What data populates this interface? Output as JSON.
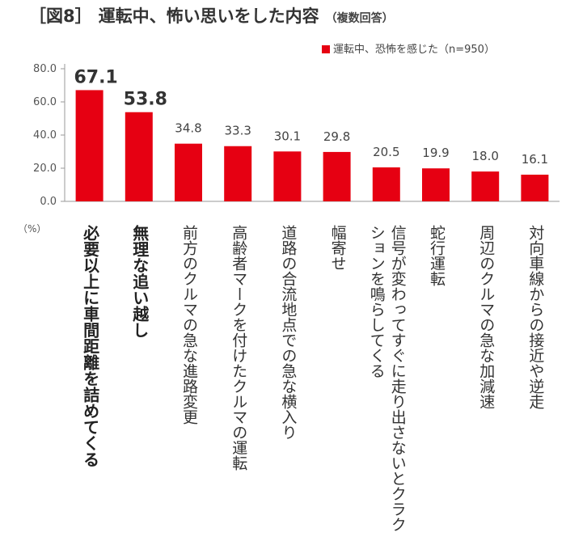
{
  "header": {
    "figure_label": "［図8］",
    "title": "運転中、怖い思いをした内容",
    "note": "（複数回答）"
  },
  "chart_data": {
    "type": "bar",
    "categories": [
      "必要以上に車間距離を詰めてくる",
      "無理な追い越し",
      "前方のクルマの急な進路変更",
      "高齢者マークを付けたクルマの運転",
      "道路の合流地点での急な横入り",
      "幅寄せ",
      "信号が変わってすぐに走り出さないとクラクションを鳴らしてくる",
      "蛇行運転",
      "周辺のクルマの急な加減速",
      "対向車線からの接近や逆走"
    ],
    "series": [
      {
        "name": "運転中、恐怖を感じた（n=950）",
        "values": [
          67.1,
          53.8,
          34.8,
          33.3,
          30.1,
          29.8,
          20.5,
          19.9,
          18.0,
          16.1
        ]
      }
    ],
    "value_labels": [
      "67.1",
      "53.8",
      "34.8",
      "33.3",
      "30.1",
      "29.8",
      "20.5",
      "19.9",
      "18.0",
      "16.1"
    ],
    "highlight_count": 2,
    "ylim": [
      0,
      80
    ],
    "y_ticks": [
      "0.0",
      "20.0",
      "40.0",
      "60.0",
      "80.0"
    ],
    "ylabel": "（%）",
    "bar_color": "#e60012",
    "legend_position": "top-right",
    "grid": false
  }
}
